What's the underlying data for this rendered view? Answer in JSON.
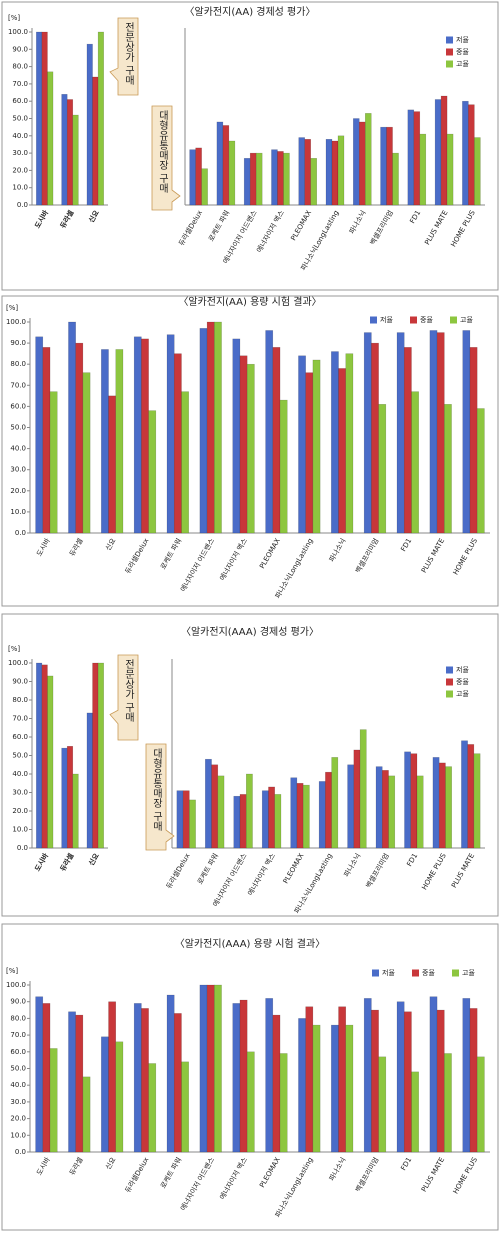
{
  "chart_data": [
    {
      "type": "bar",
      "title": "〈알카전지(AA) 경제성 평가〉",
      "y_label": "[%]",
      "side_label": "전문상가 구매",
      "categories": [
        "도시바",
        "듀라셀",
        "신요"
      ],
      "series": [
        {
          "name": "저율",
          "color": "#4a6cc8",
          "values": [
            100,
            64,
            93
          ]
        },
        {
          "name": "중율",
          "color": "#c8373a",
          "values": [
            100,
            61,
            74
          ]
        },
        {
          "name": "고율",
          "color": "#8dc63f",
          "values": [
            77,
            52,
            100
          ]
        }
      ],
      "ylim": [
        0,
        100
      ],
      "yticks": [
        {
          "value": 0,
          "label": "0.0"
        },
        {
          "value": 10,
          "label": "10.0"
        },
        {
          "value": 20,
          "label": "20.0"
        },
        {
          "value": 30,
          "label": "30.0"
        },
        {
          "value": 40,
          "label": "40.0"
        },
        {
          "value": 50,
          "label": "50.0"
        },
        {
          "value": 60,
          "label": "60.0"
        },
        {
          "value": 70,
          "label": "70.0"
        },
        {
          "value": 80,
          "label": "80.0"
        },
        {
          "value": 90,
          "label": "90.0"
        },
        {
          "value": 100,
          "label": "100.0"
        }
      ]
    },
    {
      "type": "bar",
      "side_label": "대형유통매장 구매",
      "legend": "upper right",
      "categories": [
        "듀라셀Delux",
        "로케트 파워",
        "에너자이저 어드밴스",
        "에너자이저 맥스",
        "PLEOMAX",
        "파나소닉LongLasting",
        "파나소닉",
        "벡셀프리미엄",
        "FD1",
        "PLUS MATE",
        "HOME PLUS"
      ],
      "series": [
        {
          "name": "저율",
          "color": "#4a6cc8",
          "values": [
            32,
            48,
            27,
            32,
            39,
            38,
            50,
            45,
            55,
            61,
            60
          ]
        },
        {
          "name": "중율",
          "color": "#c8373a",
          "values": [
            33,
            46,
            30,
            31,
            38,
            37,
            48,
            45,
            54,
            63,
            58
          ]
        },
        {
          "name": "고율",
          "color": "#8dc63f",
          "values": [
            21,
            37,
            30,
            30,
            27,
            40,
            53,
            30,
            41,
            41,
            39
          ]
        }
      ],
      "ylim": [
        0,
        100
      ]
    },
    {
      "type": "bar",
      "title": "〈알카전지(AA) 용량 시험 결과〉",
      "y_label": "[%]",
      "legend": "upper right",
      "categories": [
        "도시바",
        "듀라셀",
        "신요",
        "듀라셀Delux",
        "로케트 파워",
        "에너자이저 어드밴스",
        "에너자이저 맥스",
        "PLEOMAX",
        "파나소닉LongLasting",
        "파나소닉",
        "벡셀프리미엄",
        "FD1",
        "PLUS MATE",
        "HOME PLUS"
      ],
      "series": [
        {
          "name": "저율",
          "color": "#4a6cc8",
          "values": [
            93,
            100,
            87,
            93,
            94,
            97,
            92,
            96,
            84,
            86,
            95,
            95,
            96,
            96
          ]
        },
        {
          "name": "중율",
          "color": "#c8373a",
          "values": [
            88,
            90,
            65,
            92,
            85,
            100,
            84,
            88,
            76,
            78,
            90,
            88,
            95,
            88
          ]
        },
        {
          "name": "고율",
          "color": "#8dc63f",
          "values": [
            67,
            76,
            87,
            58,
            67,
            100,
            80,
            63,
            82,
            85,
            61,
            67,
            61,
            59
          ]
        }
      ],
      "ylim": [
        0,
        100
      ],
      "yticks": [
        {
          "value": 0,
          "label": "0.0"
        },
        {
          "value": 10,
          "label": "10.0"
        },
        {
          "value": 20,
          "label": "20.0"
        },
        {
          "value": 30,
          "label": "30.0"
        },
        {
          "value": 40,
          "label": "40.0"
        },
        {
          "value": 50,
          "label": "50.0"
        },
        {
          "value": 60,
          "label": "60.0"
        },
        {
          "value": 70,
          "label": "70.0"
        },
        {
          "value": 80,
          "label": "80.0"
        },
        {
          "value": 90,
          "label": "90.0"
        },
        {
          "value": 100,
          "label": "100.0"
        }
      ]
    },
    {
      "type": "bar",
      "title": "〈알카전지(AAA) 경제성 평가〉",
      "y_label": "[%]",
      "side_label": "전문상가 구매",
      "categories": [
        "도시바",
        "듀라셀",
        "신요"
      ],
      "series": [
        {
          "name": "저율",
          "color": "#4a6cc8",
          "values": [
            100,
            54,
            73
          ]
        },
        {
          "name": "중율",
          "color": "#c8373a",
          "values": [
            99,
            55,
            100
          ]
        },
        {
          "name": "고율",
          "color": "#8dc63f",
          "values": [
            93,
            40,
            100
          ]
        }
      ],
      "ylim": [
        0,
        100
      ],
      "yticks": [
        {
          "value": 0,
          "label": "0.0"
        },
        {
          "value": 10,
          "label": "10.0"
        },
        {
          "value": 20,
          "label": "20.0"
        },
        {
          "value": 30,
          "label": "30.0"
        },
        {
          "value": 40,
          "label": "40.0"
        },
        {
          "value": 50,
          "label": "50.0"
        },
        {
          "value": 60,
          "label": "60.0"
        },
        {
          "value": 70,
          "label": "70.0"
        },
        {
          "value": 80,
          "label": "80.0"
        },
        {
          "value": 90,
          "label": "90.0"
        },
        {
          "value": 100,
          "label": "100.0"
        }
      ]
    },
    {
      "type": "bar",
      "side_label": "대형유통매장 구매",
      "legend": "upper right",
      "categories": [
        "듀라셀Delux",
        "로케트 파워",
        "에너자이저 어드밴스",
        "에너자이저 맥스",
        "PLEOMAX",
        "파나소닉LongLasting",
        "파나소닉",
        "벡셀프리미엄",
        "FD1",
        "HOME PLUS",
        "PLUS MATE"
      ],
      "series": [
        {
          "name": "저율",
          "color": "#4a6cc8",
          "values": [
            31,
            48,
            28,
            31,
            38,
            36,
            45,
            44,
            52,
            49,
            58
          ]
        },
        {
          "name": "중율",
          "color": "#c8373a",
          "values": [
            31,
            45,
            29,
            33,
            35,
            41,
            53,
            42,
            51,
            46,
            56
          ]
        },
        {
          "name": "고율",
          "color": "#8dc63f",
          "values": [
            26,
            39,
            40,
            29,
            34,
            49,
            64,
            39,
            39,
            44,
            51
          ]
        }
      ],
      "ylim": [
        0,
        100
      ]
    },
    {
      "type": "bar",
      "title": "〈알카전지(AAA) 용량 시험 결과〉",
      "y_label": "[%]",
      "legend": "upper right",
      "categories": [
        "도시바",
        "듀라셀",
        "신요",
        "듀라셀Delux",
        "로케트 파워",
        "에너자이저 어드밴스",
        "에너자이저 맥스",
        "PLEOMAX",
        "파나소닉LongLasting",
        "파나소닉",
        "벡셀프리미엄",
        "FD1",
        "PLUS MATE",
        "HOME PLUS"
      ],
      "series": [
        {
          "name": "저율",
          "color": "#4a6cc8",
          "values": [
            93,
            84,
            69,
            89,
            94,
            100,
            89,
            92,
            80,
            76,
            92,
            90,
            93,
            92
          ]
        },
        {
          "name": "중율",
          "color": "#c8373a",
          "values": [
            89,
            82,
            90,
            86,
            83,
            100,
            91,
            82,
            87,
            87,
            85,
            84,
            85,
            86
          ]
        },
        {
          "name": "고율",
          "color": "#8dc63f",
          "values": [
            62,
            45,
            66,
            53,
            54,
            100,
            60,
            59,
            76,
            76,
            57,
            48,
            59,
            57
          ]
        }
      ],
      "ylim": [
        0,
        100
      ],
      "yticks": [
        {
          "value": 0,
          "label": "0.0"
        },
        {
          "value": 10,
          "label": "10.0"
        },
        {
          "value": 20,
          "label": "20.0"
        },
        {
          "value": 30,
          "label": "30.0"
        },
        {
          "value": 40,
          "label": "40.0"
        },
        {
          "value": 50,
          "label": "50.0"
        },
        {
          "value": 60,
          "label": "60.0"
        },
        {
          "value": 70,
          "label": "70.0"
        },
        {
          "value": 80,
          "label": "80.0"
        },
        {
          "value": 90,
          "label": "90.0"
        },
        {
          "value": 100,
          "label": "100.0"
        }
      ]
    }
  ]
}
